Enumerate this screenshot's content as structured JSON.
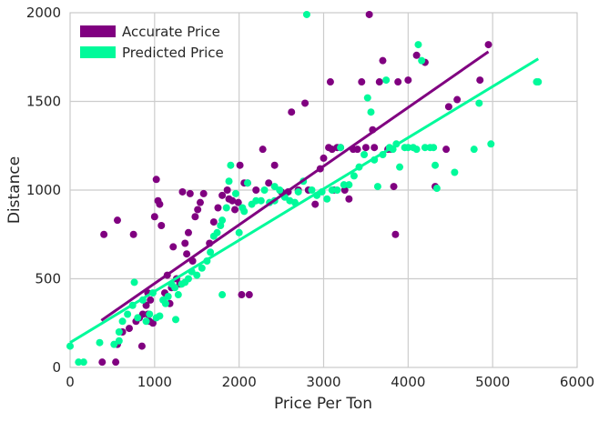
{
  "chart_data": {
    "type": "scatter",
    "xlabel": "Price Per Ton",
    "ylabel": "Distance",
    "xlim": [
      0,
      6000
    ],
    "ylim": [
      0,
      2000
    ],
    "x_ticks": [
      "0",
      "1000",
      "2000",
      "3000",
      "4000",
      "5000",
      "6000"
    ],
    "y_ticks": [
      "0",
      "500",
      "1000",
      "1500",
      "2000"
    ],
    "grid": true,
    "legend_position": "top-left",
    "series": [
      {
        "name": "Accurate Price",
        "color": "#800080",
        "points": [
          [
            380,
            30
          ],
          [
            540,
            30
          ],
          [
            560,
            830
          ],
          [
            400,
            750
          ],
          [
            750,
            750
          ],
          [
            560,
            130
          ],
          [
            620,
            200
          ],
          [
            700,
            220
          ],
          [
            780,
            260
          ],
          [
            820,
            280
          ],
          [
            860,
            300
          ],
          [
            900,
            350
          ],
          [
            920,
            420
          ],
          [
            950,
            380
          ],
          [
            980,
            250
          ],
          [
            1000,
            850
          ],
          [
            1020,
            1060
          ],
          [
            1040,
            940
          ],
          [
            1060,
            920
          ],
          [
            1080,
            800
          ],
          [
            1120,
            420
          ],
          [
            1150,
            520
          ],
          [
            1180,
            360
          ],
          [
            1200,
            450
          ],
          [
            1220,
            680
          ],
          [
            1260,
            500
          ],
          [
            1300,
            470
          ],
          [
            1330,
            990
          ],
          [
            1360,
            700
          ],
          [
            1380,
            640
          ],
          [
            1400,
            760
          ],
          [
            1420,
            980
          ],
          [
            1450,
            600
          ],
          [
            1480,
            850
          ],
          [
            1510,
            890
          ],
          [
            1540,
            930
          ],
          [
            1580,
            980
          ],
          [
            1650,
            700
          ],
          [
            1700,
            820
          ],
          [
            1750,
            900
          ],
          [
            1800,
            970
          ],
          [
            1860,
            1000
          ],
          [
            1880,
            950
          ],
          [
            1920,
            940
          ],
          [
            1950,
            890
          ],
          [
            1990,
            930
          ],
          [
            2010,
            1140
          ],
          [
            2030,
            410
          ],
          [
            2060,
            1040
          ],
          [
            2100,
            1040
          ],
          [
            2120,
            410
          ],
          [
            2200,
            1000
          ],
          [
            2280,
            1230
          ],
          [
            2350,
            1040
          ],
          [
            2420,
            1140
          ],
          [
            2500,
            990
          ],
          [
            2580,
            990
          ],
          [
            2620,
            1440
          ],
          [
            2700,
            1000
          ],
          [
            2780,
            1490
          ],
          [
            2820,
            1000
          ],
          [
            2900,
            920
          ],
          [
            2960,
            1120
          ],
          [
            3000,
            1180
          ],
          [
            3060,
            1240
          ],
          [
            3080,
            1610
          ],
          [
            3100,
            1230
          ],
          [
            3120,
            1000
          ],
          [
            3160,
            1240
          ],
          [
            3200,
            1240
          ],
          [
            3250,
            1000
          ],
          [
            3300,
            950
          ],
          [
            3350,
            1230
          ],
          [
            3400,
            1230
          ],
          [
            3450,
            1610
          ],
          [
            3500,
            1240
          ],
          [
            3540,
            1990
          ],
          [
            3580,
            1340
          ],
          [
            3600,
            1240
          ],
          [
            3660,
            1610
          ],
          [
            3700,
            1730
          ],
          [
            3760,
            1230
          ],
          [
            3800,
            1230
          ],
          [
            3830,
            1020
          ],
          [
            3850,
            750
          ],
          [
            3880,
            1610
          ],
          [
            4000,
            1620
          ],
          [
            4100,
            1760
          ],
          [
            4200,
            1720
          ],
          [
            4320,
            1020
          ],
          [
            4450,
            1230
          ],
          [
            4480,
            1470
          ],
          [
            4580,
            1510
          ],
          [
            4850,
            1620
          ],
          [
            4950,
            1820
          ],
          [
            850,
            120
          ],
          [
            920,
            300
          ],
          [
            940,
            260
          ]
        ]
      },
      {
        "name": "Predicted Price",
        "color": "#00FA9A",
        "points": [
          [
            0,
            120
          ],
          [
            100,
            30
          ],
          [
            160,
            30
          ],
          [
            350,
            140
          ],
          [
            520,
            130
          ],
          [
            580,
            200
          ],
          [
            620,
            260
          ],
          [
            680,
            300
          ],
          [
            740,
            350
          ],
          [
            760,
            480
          ],
          [
            800,
            280
          ],
          [
            860,
            380
          ],
          [
            900,
            260
          ],
          [
            940,
            300
          ],
          [
            980,
            420
          ],
          [
            1020,
            280
          ],
          [
            1060,
            290
          ],
          [
            1100,
            380
          ],
          [
            1130,
            360
          ],
          [
            1160,
            400
          ],
          [
            1200,
            470
          ],
          [
            1240,
            450
          ],
          [
            1280,
            410
          ],
          [
            1320,
            470
          ],
          [
            1360,
            480
          ],
          [
            1400,
            500
          ],
          [
            1440,
            540
          ],
          [
            1500,
            520
          ],
          [
            1560,
            560
          ],
          [
            1620,
            600
          ],
          [
            1660,
            650
          ],
          [
            1700,
            740
          ],
          [
            1740,
            760
          ],
          [
            1780,
            800
          ],
          [
            1800,
            830
          ],
          [
            1850,
            900
          ],
          [
            1880,
            1050
          ],
          [
            1900,
            1140
          ],
          [
            1960,
            980
          ],
          [
            2000,
            760
          ],
          [
            2040,
            900
          ],
          [
            2060,
            880
          ],
          [
            2100,
            1040
          ],
          [
            2150,
            920
          ],
          [
            2200,
            940
          ],
          [
            2260,
            940
          ],
          [
            2300,
            1000
          ],
          [
            2360,
            930
          ],
          [
            2420,
            940
          ],
          [
            2480,
            1000
          ],
          [
            2540,
            960
          ],
          [
            2600,
            940
          ],
          [
            2660,
            930
          ],
          [
            2700,
            990
          ],
          [
            2760,
            1050
          ],
          [
            2800,
            1990
          ],
          [
            2860,
            1000
          ],
          [
            2920,
            970
          ],
          [
            2980,
            990
          ],
          [
            3040,
            950
          ],
          [
            3100,
            1000
          ],
          [
            3160,
            1000
          ],
          [
            3200,
            1240
          ],
          [
            3240,
            1030
          ],
          [
            3300,
            1030
          ],
          [
            3360,
            1080
          ],
          [
            3420,
            1130
          ],
          [
            3480,
            1200
          ],
          [
            3520,
            1520
          ],
          [
            3560,
            1440
          ],
          [
            3600,
            1170
          ],
          [
            3640,
            1020
          ],
          [
            3700,
            1200
          ],
          [
            3740,
            1620
          ],
          [
            3780,
            1240
          ],
          [
            3820,
            1230
          ],
          [
            3860,
            1260
          ],
          [
            3900,
            1130
          ],
          [
            3960,
            1240
          ],
          [
            4000,
            1240
          ],
          [
            4060,
            1240
          ],
          [
            4100,
            1230
          ],
          [
            4120,
            1820
          ],
          [
            4160,
            1730
          ],
          [
            4200,
            1240
          ],
          [
            4260,
            1240
          ],
          [
            4300,
            1240
          ],
          [
            4320,
            1140
          ],
          [
            4340,
            1010
          ],
          [
            4550,
            1100
          ],
          [
            4780,
            1230
          ],
          [
            4840,
            1490
          ],
          [
            4980,
            1260
          ],
          [
            5520,
            1610
          ],
          [
            5540,
            1610
          ],
          [
            1800,
            410
          ],
          [
            1250,
            270
          ],
          [
            580,
            150
          ],
          [
            2420,
            1020
          ]
        ]
      }
    ],
    "lines": [
      {
        "series": "Accurate Price",
        "color": "#800080",
        "x": [
          370,
          4950
        ],
        "y": [
          265,
          1780
        ]
      },
      {
        "series": "Predicted Price",
        "color": "#00FA9A",
        "x": [
          0,
          5540
        ],
        "y": [
          140,
          1740
        ]
      }
    ]
  }
}
